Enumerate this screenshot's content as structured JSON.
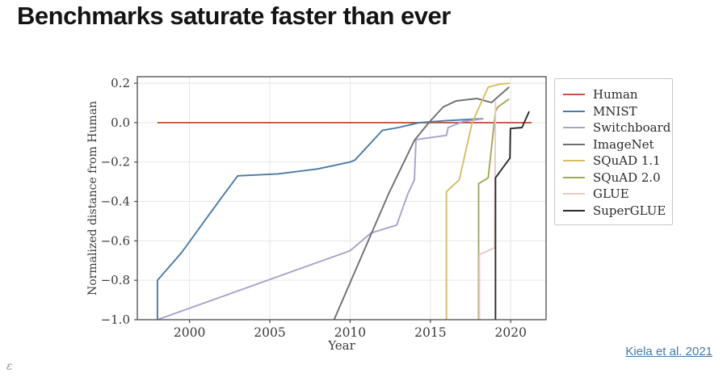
{
  "title": "Benchmarks saturate faster than ever",
  "citation": {
    "text": "Kiela et al. 2021",
    "color": "#4878a5"
  },
  "corner_mark": "ε",
  "chart_data": {
    "type": "line",
    "title": "",
    "xlabel": "Year",
    "ylabel": "Normalized distance from Human",
    "xlim": [
      1996.75,
      2022.2
    ],
    "ylim": [
      -1.0,
      0.233
    ],
    "xticks": [
      2000,
      2005,
      2010,
      2015,
      2020
    ],
    "yticks": [
      0.2,
      0.0,
      -0.2,
      -0.4,
      -0.6,
      -0.8,
      -1.0
    ],
    "grid": true,
    "legend_position": "right",
    "legend_entries": [
      "Human",
      "MNIST",
      "Switchboard",
      "ImageNet",
      "SQuAD 1.1",
      "SQuAD 2.0",
      "GLUE",
      "SuperGLUE"
    ],
    "series": [
      {
        "name": "Human",
        "color": "#c8523e",
        "points": [
          [
            1998,
            0.0
          ],
          [
            2021.3,
            0.0
          ]
        ]
      },
      {
        "name": "MNIST",
        "color": "#4a7ba6",
        "points": [
          [
            1998,
            -1.0
          ],
          [
            1998,
            -0.8
          ],
          [
            1999.5,
            -0.66
          ],
          [
            2002,
            -0.38
          ],
          [
            2003,
            -0.27
          ],
          [
            2005.5,
            -0.26
          ],
          [
            2008,
            -0.235
          ],
          [
            2010,
            -0.2
          ],
          [
            2010.3,
            -0.19
          ],
          [
            2012,
            -0.04
          ],
          [
            2013,
            -0.025
          ],
          [
            2014.3,
            0.0
          ],
          [
            2016,
            0.01
          ],
          [
            2018.3,
            0.02
          ]
        ]
      },
      {
        "name": "Switchboard",
        "color": "#a6a3cc",
        "points": [
          [
            1998,
            -1.0
          ],
          [
            2010,
            -0.65
          ],
          [
            2011.3,
            -0.56
          ],
          [
            2012.9,
            -0.52
          ],
          [
            2013.6,
            -0.36
          ],
          [
            2014,
            -0.29
          ],
          [
            2014.1,
            -0.086
          ],
          [
            2016,
            -0.065
          ],
          [
            2016.1,
            -0.025
          ],
          [
            2017,
            0.005
          ],
          [
            2018.3,
            0.02
          ]
        ]
      },
      {
        "name": "ImageNet",
        "color": "#6e6e75",
        "points": [
          [
            2009,
            -1.0
          ],
          [
            2012.4,
            -0.36
          ],
          [
            2014,
            -0.09
          ],
          [
            2014.9,
            0.0
          ],
          [
            2015.8,
            0.08
          ],
          [
            2016.6,
            0.11
          ],
          [
            2017.9,
            0.122
          ],
          [
            2018.8,
            0.102
          ],
          [
            2019.9,
            0.18
          ]
        ]
      },
      {
        "name": "SQuAD 1.1",
        "color": "#d8bd62",
        "points": [
          [
            2016,
            -1.0
          ],
          [
            2016,
            -0.35
          ],
          [
            2016.8,
            -0.29
          ],
          [
            2017.6,
            0.0
          ],
          [
            2018.6,
            0.18
          ],
          [
            2019.3,
            0.195
          ],
          [
            2019.95,
            0.2
          ]
        ]
      },
      {
        "name": "SQuAD 2.0",
        "color": "#9fa85c",
        "points": [
          [
            2018,
            -1.0
          ],
          [
            2018,
            -0.31
          ],
          [
            2018.6,
            -0.28
          ],
          [
            2019.05,
            0.057
          ],
          [
            2019.2,
            0.08
          ],
          [
            2019.9,
            0.12
          ]
        ]
      },
      {
        "name": "GLUE",
        "color": "#eac9c4",
        "points": [
          [
            2018.05,
            -1.0
          ],
          [
            2018.05,
            -0.67
          ],
          [
            2019.0,
            -0.635
          ],
          [
            2019.05,
            0.11
          ]
        ]
      },
      {
        "name": "SuperGLUE",
        "color": "#2a2a2a",
        "points": [
          [
            2019.05,
            -1.0
          ],
          [
            2019.05,
            -0.28
          ],
          [
            2019.95,
            -0.18
          ],
          [
            2019.98,
            -0.03
          ],
          [
            2020.7,
            -0.025
          ],
          [
            2021.15,
            0.057
          ]
        ]
      }
    ]
  }
}
